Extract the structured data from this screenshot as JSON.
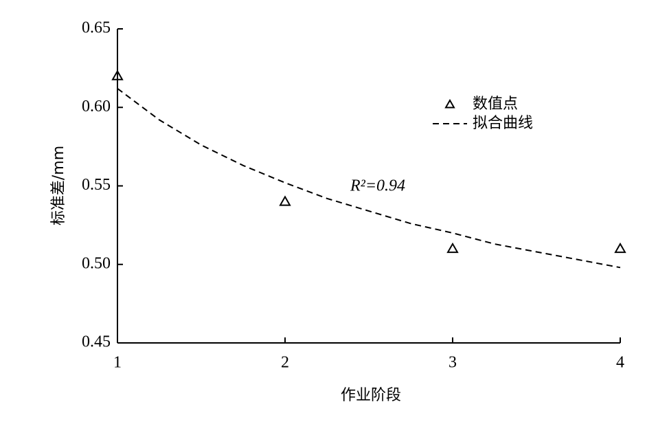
{
  "chart_data": {
    "type": "scatter",
    "x_label": "作业阶段",
    "y_label": "标准差/mm",
    "annotation": "R²=0.94",
    "xlim": [
      1,
      4
    ],
    "xticks": [
      1,
      2,
      3,
      4
    ],
    "ylim": [
      0.45,
      0.65
    ],
    "yticks": [
      0.45,
      {
        "value": 0.5,
        "label": "0.50"
      },
      0.55,
      {
        "value": 0.6,
        "label": "0.60"
      },
      0.65
    ],
    "grid": false,
    "legend": "upper right",
    "series": [
      {
        "name": "数值点",
        "type": "scatter",
        "marker": "triangle",
        "color": "#000000",
        "x": [
          1,
          2,
          3,
          4
        ],
        "values": [
          0.62,
          0.54,
          0.51,
          0.51
        ]
      },
      {
        "name": "拟合曲线",
        "type": "line",
        "dashed": true,
        "color": "#000000",
        "x": [
          1,
          1.25,
          1.5,
          1.75,
          2,
          2.25,
          2.5,
          2.75,
          3,
          3.25,
          3.5,
          3.75,
          4
        ],
        "values": [
          0.612,
          0.592,
          0.576,
          0.563,
          0.552,
          0.542,
          0.534,
          0.526,
          0.52,
          0.513,
          0.508,
          0.503,
          0.498
        ]
      }
    ]
  }
}
